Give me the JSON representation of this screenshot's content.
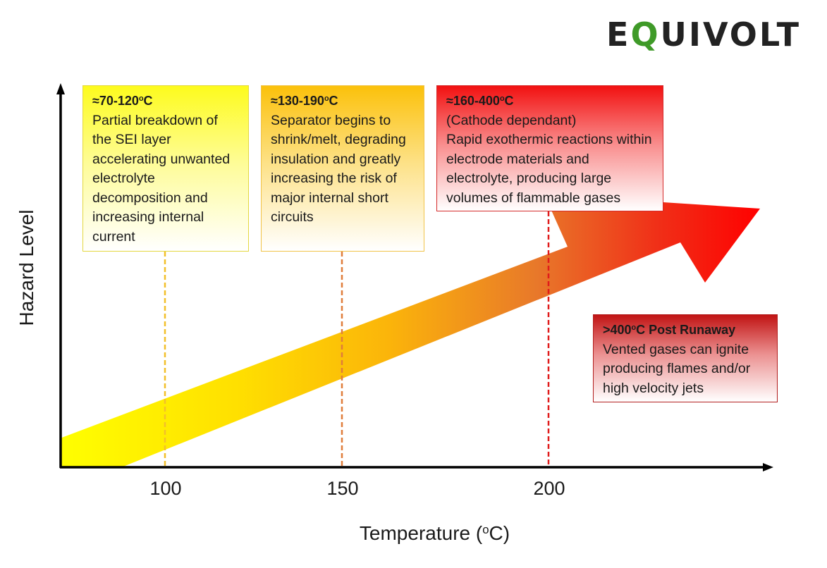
{
  "logo": {
    "pre": "E",
    "q": "Q",
    "post": "UIVOLT"
  },
  "axes": {
    "xlabel_pre": "Temperature (",
    "xlabel_sup": "o",
    "xlabel_post": "C)",
    "ylabel": "Hazard Level"
  },
  "ticks": [
    "100",
    "150",
    "200"
  ],
  "boxes": [
    {
      "header_pre": "≈70-120",
      "header_sup": "o",
      "header_post": "C",
      "body": "Partial breakdown of the SEI layer accelerating unwanted electrolyte decomposition and increasing internal current"
    },
    {
      "header_pre": "≈130-190",
      "header_sup": "o",
      "header_post": "C",
      "body": "Separator begins to shrink/melt, degrading insulation and greatly increasing the risk of major internal short circuits"
    },
    {
      "header_pre": "≈160-400",
      "header_sup": "o",
      "header_post": "C",
      "sub": "(Cathode dependant)",
      "body": "Rapid exothermic reactions within electrode materials and electrolyte, producing large volumes of flammable gases"
    },
    {
      "header_pre": ">400",
      "header_sup": "o",
      "header_post": "C Post Runaway",
      "body": "Vented gases can ignite producing flames and/or high velocity jets"
    }
  ],
  "colors": {
    "marker_100": "#f2c02a",
    "marker_150": "#e07d3a",
    "marker_200": "#e01b1b",
    "logo_accent": "#3f9a28"
  }
}
